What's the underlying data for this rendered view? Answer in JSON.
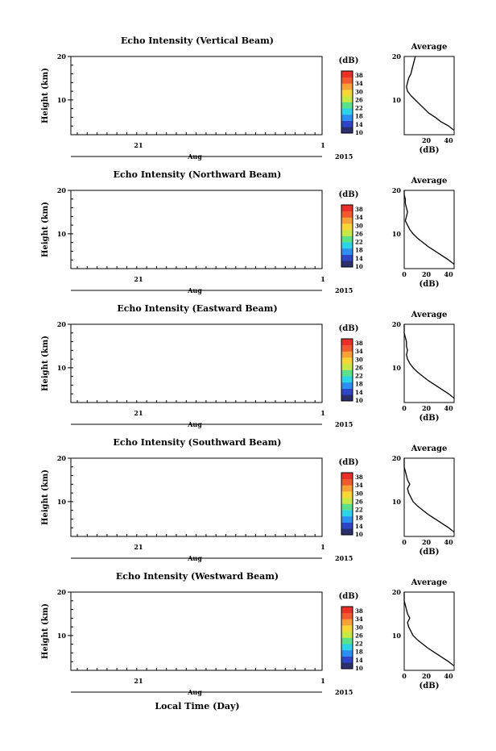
{
  "colorbar": {
    "unit_label": "(dB)",
    "ticks": [
      "10",
      "14",
      "18",
      "22",
      "26",
      "30",
      "34",
      "38"
    ],
    "colors": [
      "#2b2f6e",
      "#2f46c4",
      "#2f8ff0",
      "#2fd3e8",
      "#5de08a",
      "#c8e84a",
      "#f8d63a",
      "#f7a13a",
      "#f05a30",
      "#e8302a"
    ]
  },
  "panels": [
    {
      "title": "Echo Intensity (Vertical Beam)",
      "avg_ticks": [
        "20",
        "40"
      ],
      "profile": [
        [
          45,
          3
        ],
        [
          40,
          4
        ],
        [
          33,
          5
        ],
        [
          28,
          6
        ],
        [
          22,
          7
        ],
        [
          18,
          8
        ],
        [
          14,
          9
        ],
        [
          10,
          10
        ],
        [
          6,
          11
        ],
        [
          3,
          12
        ],
        [
          2,
          13
        ],
        [
          3,
          14
        ],
        [
          4,
          15
        ],
        [
          6,
          16
        ],
        [
          7,
          17
        ],
        [
          8,
          18
        ],
        [
          9,
          19
        ],
        [
          10,
          20
        ]
      ]
    },
    {
      "title": "Echo Intensity (Northward Beam)",
      "avg_ticks": [
        "0",
        "20",
        "40"
      ],
      "profile": [
        [
          45,
          3
        ],
        [
          40,
          4
        ],
        [
          34,
          5
        ],
        [
          28,
          6
        ],
        [
          22,
          7
        ],
        [
          17,
          8
        ],
        [
          12,
          9
        ],
        [
          8,
          10
        ],
        [
          5,
          11
        ],
        [
          3,
          12
        ],
        [
          1,
          13
        ],
        [
          2,
          14
        ],
        [
          3,
          15
        ],
        [
          2,
          16
        ],
        [
          1,
          17
        ],
        [
          1,
          18
        ],
        [
          0,
          19
        ],
        [
          0,
          20
        ]
      ]
    },
    {
      "title": "Echo Intensity (Eastward Beam)",
      "avg_ticks": [
        "0",
        "20",
        "40"
      ],
      "profile": [
        [
          45,
          3
        ],
        [
          40,
          4
        ],
        [
          34,
          5
        ],
        [
          28,
          6
        ],
        [
          22,
          7
        ],
        [
          17,
          8
        ],
        [
          12,
          9
        ],
        [
          8,
          10
        ],
        [
          5,
          11
        ],
        [
          3,
          12
        ],
        [
          2,
          13
        ],
        [
          3,
          14
        ],
        [
          2,
          15
        ],
        [
          2,
          16
        ],
        [
          1,
          17
        ],
        [
          0,
          18
        ],
        [
          0,
          19
        ],
        [
          0,
          20
        ]
      ]
    },
    {
      "title": "Echo Intensity (Southward Beam)",
      "avg_ticks": [
        "0",
        "20",
        "40"
      ],
      "profile": [
        [
          45,
          3
        ],
        [
          40,
          4
        ],
        [
          34,
          5
        ],
        [
          28,
          6
        ],
        [
          22,
          7
        ],
        [
          17,
          8
        ],
        [
          12,
          9
        ],
        [
          8,
          10
        ],
        [
          6,
          11
        ],
        [
          4,
          12
        ],
        [
          3,
          13
        ],
        [
          5,
          14
        ],
        [
          3,
          15
        ],
        [
          2,
          16
        ],
        [
          1,
          17
        ],
        [
          0,
          18
        ],
        [
          0,
          19
        ],
        [
          0,
          20
        ]
      ]
    },
    {
      "title": "Echo Intensity (Westward Beam)",
      "avg_ticks": [
        "0",
        "20",
        "40"
      ],
      "profile": [
        [
          45,
          3
        ],
        [
          40,
          4
        ],
        [
          34,
          5
        ],
        [
          28,
          6
        ],
        [
          22,
          7
        ],
        [
          17,
          8
        ],
        [
          12,
          9
        ],
        [
          8,
          10
        ],
        [
          6,
          11
        ],
        [
          4,
          12
        ],
        [
          3,
          13
        ],
        [
          5,
          14
        ],
        [
          3,
          15
        ],
        [
          2,
          16
        ],
        [
          1,
          17
        ],
        [
          0,
          18
        ],
        [
          0,
          19
        ],
        [
          0,
          20
        ]
      ]
    }
  ],
  "labels": {
    "ylabel": "Height (km)",
    "y_ticks": [
      "10",
      "20"
    ],
    "x_tick": "21",
    "x_end_tick": "1",
    "month": "Aug",
    "year": "2015",
    "avg_title": "Average",
    "avg_xlabel": "(dB)",
    "bottom_xlabel": "Local Time (Day)"
  },
  "chart_data": [
    {
      "type": "heatmap",
      "title": "Echo Intensity (Vertical Beam)",
      "ylabel": "Height (km)",
      "ylim": [
        2,
        20
      ],
      "x_ticks": [
        "21",
        "1"
      ],
      "x_label": "Aug",
      "year": "2015",
      "colorbar_range": [
        10,
        38
      ],
      "colorbar_label": "(dB)"
    },
    {
      "type": "line",
      "title": "Average",
      "xlabel": "(dB)",
      "xlim": [
        0,
        45
      ],
      "ylim": [
        2,
        20
      ],
      "x": [
        45,
        40,
        33,
        28,
        22,
        18,
        14,
        10,
        6,
        3,
        2,
        3,
        4,
        6,
        7,
        8,
        9,
        10
      ],
      "y": [
        3,
        4,
        5,
        6,
        7,
        8,
        9,
        10,
        11,
        12,
        13,
        14,
        15,
        16,
        17,
        18,
        19,
        20
      ]
    },
    {
      "type": "heatmap",
      "title": "Echo Intensity (Northward Beam)",
      "ylabel": "Height (km)",
      "ylim": [
        2,
        20
      ],
      "colorbar_range": [
        10,
        38
      ]
    },
    {
      "type": "line",
      "title": "Average",
      "xlabel": "(dB)",
      "xlim": [
        0,
        45
      ],
      "x": [
        45,
        40,
        34,
        28,
        22,
        17,
        12,
        8,
        5,
        3,
        1,
        2,
        3,
        2,
        1,
        1,
        0,
        0
      ],
      "y": [
        3,
        4,
        5,
        6,
        7,
        8,
        9,
        10,
        11,
        12,
        13,
        14,
        15,
        16,
        17,
        18,
        19,
        20
      ]
    },
    {
      "type": "heatmap",
      "title": "Echo Intensity (Eastward Beam)",
      "ylabel": "Height (km)",
      "ylim": [
        2,
        20
      ],
      "colorbar_range": [
        10,
        38
      ]
    },
    {
      "type": "line",
      "title": "Average",
      "xlabel": "(dB)",
      "xlim": [
        0,
        45
      ],
      "x": [
        45,
        40,
        34,
        28,
        22,
        17,
        12,
        8,
        5,
        3,
        2,
        3,
        2,
        2,
        1,
        0,
        0,
        0
      ],
      "y": [
        3,
        4,
        5,
        6,
        7,
        8,
        9,
        10,
        11,
        12,
        13,
        14,
        15,
        16,
        17,
        18,
        19,
        20
      ]
    },
    {
      "type": "heatmap",
      "title": "Echo Intensity (Southward Beam)",
      "ylabel": "Height (km)",
      "ylim": [
        2,
        20
      ],
      "colorbar_range": [
        10,
        38
      ]
    },
    {
      "type": "line",
      "title": "Average",
      "xlabel": "(dB)",
      "xlim": [
        0,
        45
      ],
      "x": [
        45,
        40,
        34,
        28,
        22,
        17,
        12,
        8,
        6,
        4,
        3,
        5,
        3,
        2,
        1,
        0,
        0,
        0
      ],
      "y": [
        3,
        4,
        5,
        6,
        7,
        8,
        9,
        10,
        11,
        12,
        13,
        14,
        15,
        16,
        17,
        18,
        19,
        20
      ]
    },
    {
      "type": "heatmap",
      "title": "Echo Intensity (Westward Beam)",
      "ylabel": "Height (km)",
      "ylim": [
        2,
        20
      ],
      "colorbar_range": [
        10,
        38
      ]
    },
    {
      "type": "line",
      "title": "Average",
      "xlabel": "(dB)",
      "xlim": [
        0,
        45
      ],
      "x": [
        45,
        40,
        34,
        28,
        22,
        17,
        12,
        8,
        6,
        4,
        3,
        5,
        3,
        2,
        1,
        0,
        0,
        0
      ],
      "y": [
        3,
        4,
        5,
        6,
        7,
        8,
        9,
        10,
        11,
        12,
        13,
        14,
        15,
        16,
        17,
        18,
        19,
        20
      ]
    }
  ]
}
